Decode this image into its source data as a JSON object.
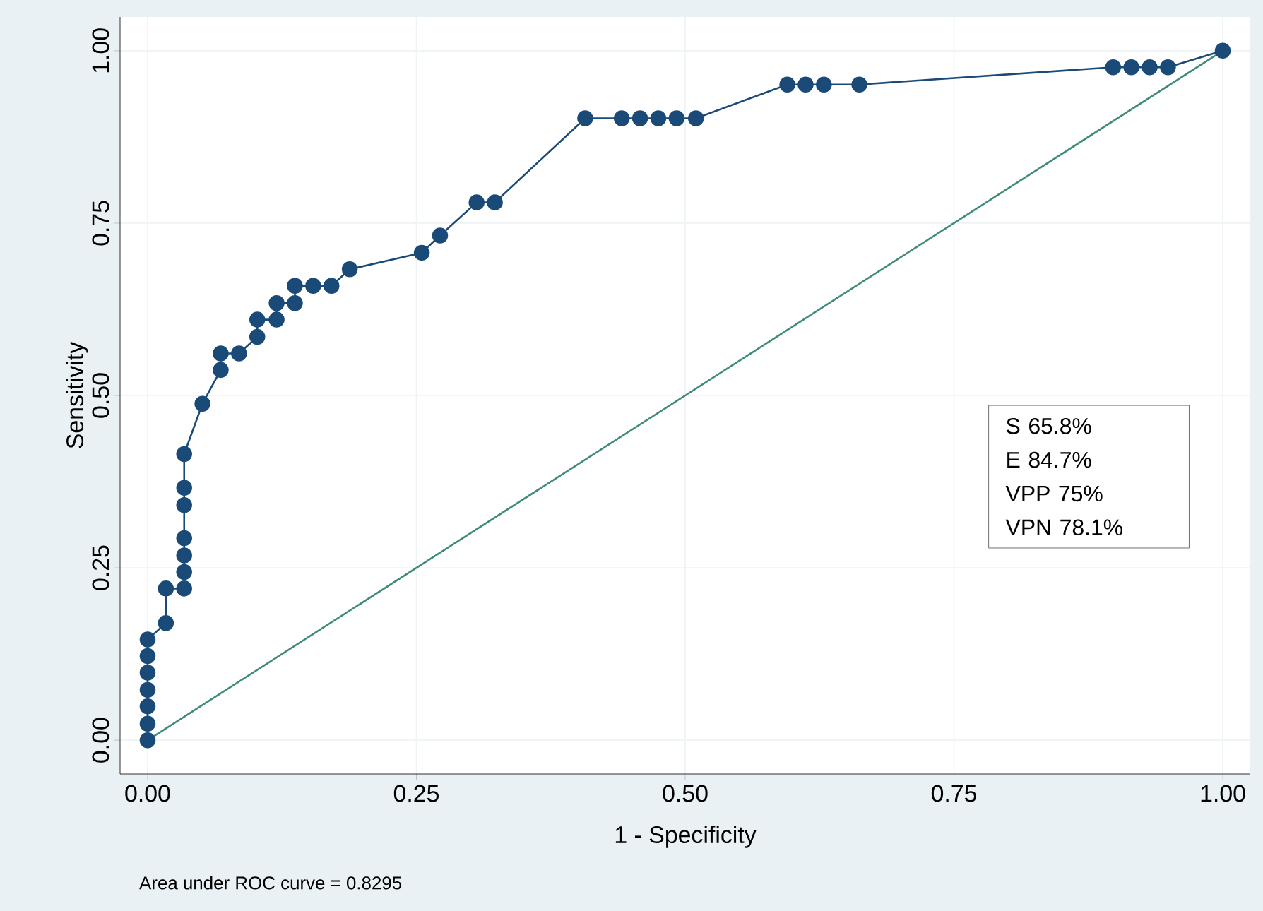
{
  "chart_data": {
    "type": "line",
    "xlabel": "1 - Specificity",
    "ylabel": "Sensitivity",
    "xlim": [
      0,
      1
    ],
    "ylim": [
      0,
      1
    ],
    "xticks": [
      {
        "value": 0,
        "label": "0.00"
      },
      {
        "value": 0.25,
        "label": "0.25"
      },
      {
        "value": 0.5,
        "label": "0.50"
      },
      {
        "value": 0.75,
        "label": "0.75"
      },
      {
        "value": 1,
        "label": "1.00"
      }
    ],
    "yticks": [
      {
        "value": 0,
        "label": "0.00"
      },
      {
        "value": 0.25,
        "label": "0.25"
      },
      {
        "value": 0.5,
        "label": "0.50"
      },
      {
        "value": 0.75,
        "label": "0.75"
      },
      {
        "value": 1,
        "label": "1.00"
      }
    ],
    "grid": true,
    "series": [
      {
        "color": "#1a4a78",
        "marker": "circle",
        "x": [
          0,
          0,
          0,
          0,
          0,
          0,
          0,
          0.017,
          0.017,
          0.034,
          0.034,
          0.034,
          0.034,
          0.034,
          0.034,
          0.034,
          0.051,
          0.068,
          0.068,
          0.085,
          0.102,
          0.102,
          0.12,
          0.12,
          0.137,
          0.137,
          0.154,
          0.171,
          0.188,
          0.255,
          0.272,
          0.306,
          0.323,
          0.407,
          0.441,
          0.458,
          0.475,
          0.492,
          0.51,
          0.595,
          0.612,
          0.629,
          0.662,
          0.898,
          0.915,
          0.932,
          0.949,
          1
        ],
        "values": [
          0,
          0.024,
          0.049,
          0.073,
          0.098,
          0.122,
          0.146,
          0.17,
          0.22,
          0.22,
          0.244,
          0.268,
          0.293,
          0.341,
          0.366,
          0.415,
          0.488,
          0.537,
          0.561,
          0.561,
          0.585,
          0.61,
          0.61,
          0.634,
          0.634,
          0.659,
          0.659,
          0.659,
          0.683,
          0.707,
          0.732,
          0.78,
          0.78,
          0.902,
          0.902,
          0.902,
          0.902,
          0.902,
          0.902,
          0.951,
          0.951,
          0.951,
          0.951,
          0.976,
          0.976,
          0.976,
          0.976,
          1
        ]
      },
      {
        "color": "#3f8a7c",
        "marker": "none",
        "x": [
          0,
          1
        ],
        "values": [
          0,
          1
        ]
      }
    ],
    "annotations": [
      "S 65.8%",
      "E 84.7%",
      "VPP 75%",
      "VPN 78.1%",
      "Area under ROC curve = 0.8295"
    ]
  }
}
